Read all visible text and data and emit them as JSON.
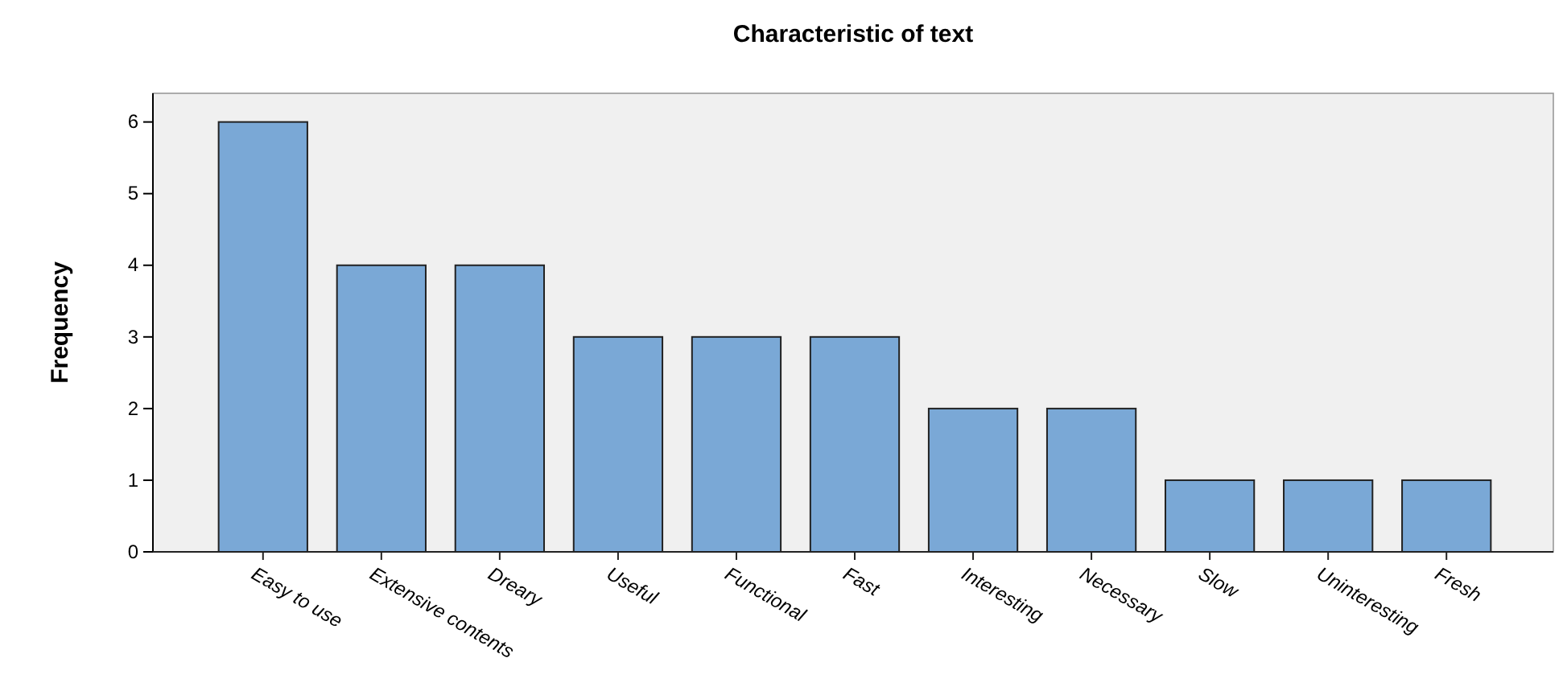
{
  "chart_data": {
    "type": "bar",
    "title": "Characteristic of text",
    "ylabel": "Frequency",
    "categories": [
      "Easy to use",
      "Extensive contents",
      "Dreary",
      "Useful",
      "Functional",
      "Fast",
      "Interesting",
      "Necessary",
      "Slow",
      "Uninteresting",
      "Fresh"
    ],
    "values": [
      6,
      4,
      4,
      3,
      3,
      3,
      2,
      2,
      1,
      1,
      1
    ],
    "color": "#7aa8d6",
    "ylim": [
      0,
      6.4
    ],
    "yticks": [
      0,
      1,
      2,
      3,
      4,
      5,
      6
    ],
    "grid": false
  }
}
